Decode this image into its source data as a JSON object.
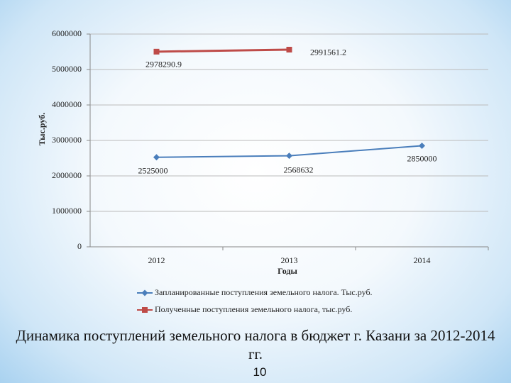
{
  "chart_data": {
    "type": "line",
    "stacked": true,
    "x_label": "Годы",
    "y_label": "Тыс.руб.",
    "categories": [
      "2012",
      "2013",
      "2014"
    ],
    "series": [
      {
        "name": "Запланированные поступления земельного налога. Тыс.руб.",
        "color": "#4a7ebb",
        "marker": "diamond",
        "values": [
          2525000,
          2568632,
          2850000
        ]
      },
      {
        "name": "Полученные поступления земельного налога, тыс.руб.",
        "color": "#be4b48",
        "marker": "square",
        "values": [
          2978290.9,
          2991561.2,
          null
        ]
      }
    ],
    "ylim": [
      0,
      6000000
    ],
    "yticks": [
      0,
      1000000,
      2000000,
      3000000,
      4000000,
      5000000,
      6000000
    ],
    "grid": true
  },
  "caption": "Динамика поступлений земельного налога в бюджет г. Казани за 2012-2014 гг.",
  "page_number": "10"
}
